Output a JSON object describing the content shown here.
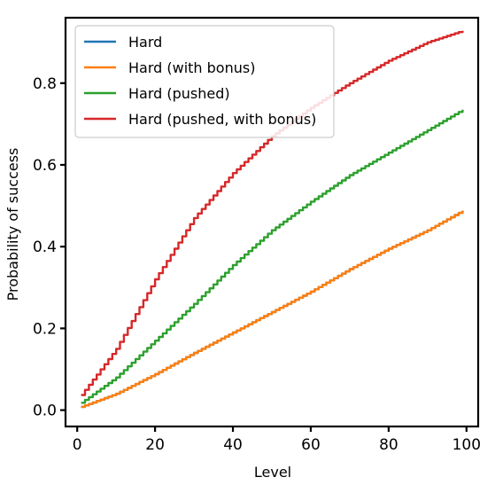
{
  "chart_data": {
    "type": "line",
    "title": "",
    "xlabel": "Level",
    "ylabel": "Probability of success",
    "xlim": [
      -3,
      103
    ],
    "ylim": [
      -0.04,
      0.96
    ],
    "xticks": [
      0,
      20,
      40,
      60,
      80,
      100
    ],
    "xtick_labels": [
      "0",
      "20",
      "40",
      "60",
      "80",
      "100"
    ],
    "yticks": [
      0.0,
      0.2,
      0.4,
      0.6,
      0.8
    ],
    "ytick_labels": [
      "0.0",
      "0.2",
      "0.4",
      "0.6",
      "0.8"
    ],
    "grid": false,
    "legend": "top-left",
    "x": [
      1,
      10,
      20,
      30,
      40,
      50,
      60,
      70,
      80,
      90,
      99
    ],
    "series": [
      {
        "name": "Hard",
        "color": "#1f77b4",
        "values": [
          0.008,
          0.04,
          0.088,
          0.14,
          0.19,
          0.24,
          0.29,
          0.345,
          0.395,
          0.44,
          0.488
        ]
      },
      {
        "name": "Hard (with bonus)",
        "color": "#ff7f0e",
        "values": [
          0.008,
          0.04,
          0.088,
          0.14,
          0.19,
          0.24,
          0.29,
          0.345,
          0.395,
          0.44,
          0.488
        ]
      },
      {
        "name": "Hard (pushed)",
        "color": "#2ca02c",
        "values": [
          0.018,
          0.08,
          0.17,
          0.26,
          0.355,
          0.44,
          0.51,
          0.575,
          0.63,
          0.685,
          0.735
        ]
      },
      {
        "name": "Hard (pushed, with bonus)",
        "color": "#d62728",
        "values": [
          0.037,
          0.15,
          0.32,
          0.47,
          0.58,
          0.67,
          0.74,
          0.8,
          0.855,
          0.9,
          0.928
        ]
      }
    ]
  }
}
